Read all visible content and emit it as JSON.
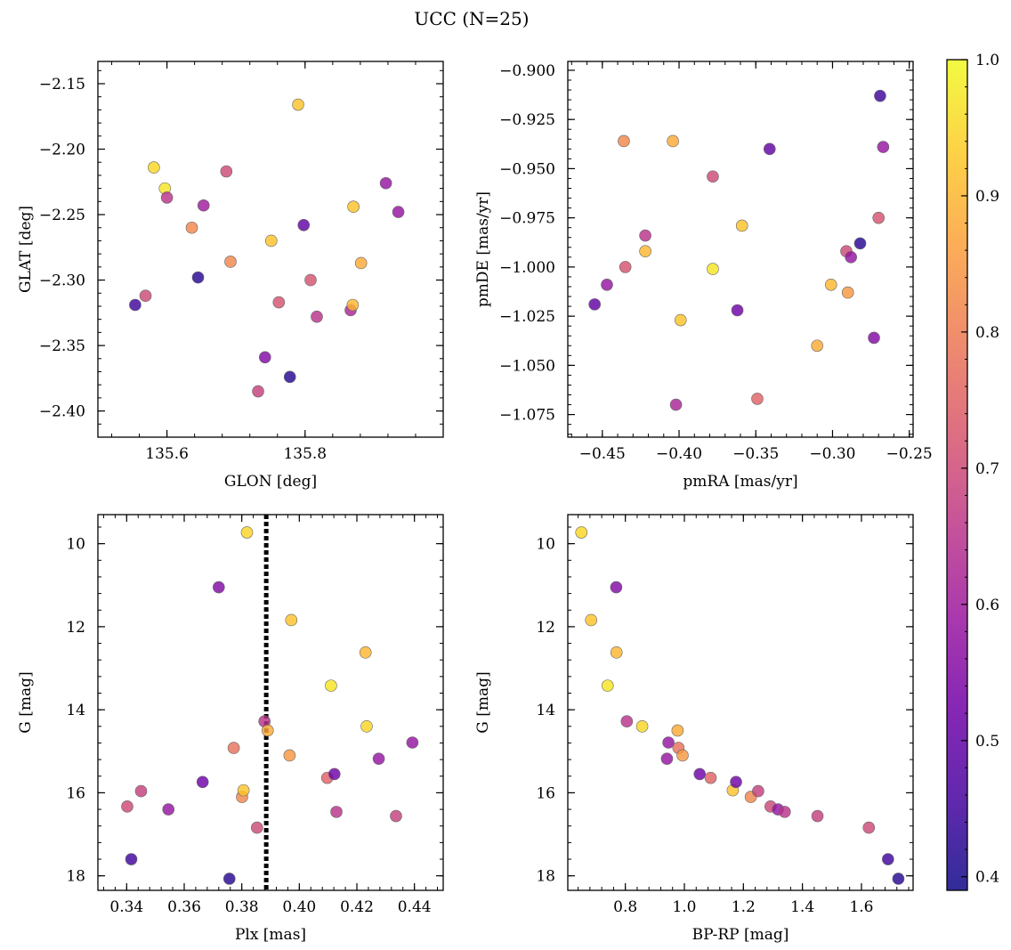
{
  "title": "UCC (N=25)",
  "colormap": [
    "#0d0887",
    "#46039f",
    "#7201a8",
    "#9c179e",
    "#bd3786",
    "#d8576b",
    "#ed7953",
    "#fb9f3a",
    "#fdca26",
    "#f0f921"
  ],
  "colorbar": {
    "range": [
      0.39,
      1.0
    ],
    "ticks": [
      0.4,
      0.5,
      0.6,
      0.7,
      0.8,
      0.9,
      1.0
    ],
    "tick_labels": [
      "0.4",
      "0.5",
      "0.6",
      "0.7",
      "0.8",
      "0.9",
      "1.0"
    ]
  },
  "chart_data": [
    {
      "type": "scatter",
      "xlabel": "GLON [deg]",
      "ylabel": "GLAT [deg]",
      "xlim": [
        135.5,
        136.0
      ],
      "ylim": [
        -2.42,
        -2.133
      ],
      "xticks": [
        135.6,
        135.8
      ],
      "xtick_labels": [
        "135.6",
        "135.8"
      ],
      "yticks": [
        -2.15,
        -2.2,
        -2.25,
        -2.3,
        -2.35,
        -2.4
      ],
      "ytick_labels": [
        "−2.15",
        "−2.20",
        "−2.25",
        "−2.30",
        "−2.35",
        "−2.40"
      ],
      "points": [
        {
          "x": 135.554,
          "y": -2.319,
          "c": 0.45
        },
        {
          "x": 135.569,
          "y": -2.312,
          "c": 0.7
        },
        {
          "x": 135.581,
          "y": -2.214,
          "c": 0.95
        },
        {
          "x": 135.597,
          "y": -2.23,
          "c": 0.97
        },
        {
          "x": 135.6,
          "y": -2.237,
          "c": 0.65
        },
        {
          "x": 135.636,
          "y": -2.26,
          "c": 0.82
        },
        {
          "x": 135.645,
          "y": -2.298,
          "c": 0.42
        },
        {
          "x": 135.653,
          "y": -2.243,
          "c": 0.6
        },
        {
          "x": 135.686,
          "y": -2.217,
          "c": 0.7
        },
        {
          "x": 135.692,
          "y": -2.286,
          "c": 0.82
        },
        {
          "x": 135.732,
          "y": -2.385,
          "c": 0.68
        },
        {
          "x": 135.742,
          "y": -2.359,
          "c": 0.55
        },
        {
          "x": 135.751,
          "y": -2.27,
          "c": 0.92
        },
        {
          "x": 135.762,
          "y": -2.317,
          "c": 0.72
        },
        {
          "x": 135.778,
          "y": -2.374,
          "c": 0.42
        },
        {
          "x": 135.79,
          "y": -2.166,
          "c": 0.92
        },
        {
          "x": 135.798,
          "y": -2.258,
          "c": 0.5
        },
        {
          "x": 135.808,
          "y": -2.3,
          "c": 0.72
        },
        {
          "x": 135.817,
          "y": -2.328,
          "c": 0.65
        },
        {
          "x": 135.866,
          "y": -2.323,
          "c": 0.62
        },
        {
          "x": 135.869,
          "y": -2.319,
          "c": 0.9
        },
        {
          "x": 135.87,
          "y": -2.244,
          "c": 0.92
        },
        {
          "x": 135.881,
          "y": -2.287,
          "c": 0.88
        },
        {
          "x": 135.917,
          "y": -2.226,
          "c": 0.58
        },
        {
          "x": 135.935,
          "y": -2.248,
          "c": 0.58
        }
      ]
    },
    {
      "type": "scatter",
      "xlabel": "pmRA [mas/yr]",
      "ylabel": "pmDE [mas/yr]",
      "xlim": [
        -0.4725,
        -0.2475
      ],
      "ylim": [
        -1.0865,
        -0.8955
      ],
      "xticks": [
        -0.45,
        -0.4,
        -0.35,
        -0.3,
        -0.25
      ],
      "xtick_labels": [
        "−0.45",
        "−0.40",
        "−0.35",
        "−0.30",
        "−0.25"
      ],
      "yticks": [
        -0.9,
        -0.925,
        -0.95,
        -0.975,
        -1.0,
        -1.025,
        -1.05,
        -1.075
      ],
      "ytick_labels": [
        "−0.900",
        "−0.925",
        "−0.950",
        "−0.975",
        "−1.000",
        "−1.025",
        "−1.050",
        "−1.075"
      ],
      "points": [
        {
          "x": -0.455,
          "y": -1.019,
          "c": 0.5
        },
        {
          "x": -0.447,
          "y": -1.009,
          "c": 0.58
        },
        {
          "x": -0.436,
          "y": -0.936,
          "c": 0.82
        },
        {
          "x": -0.435,
          "y": -1.0,
          "c": 0.72
        },
        {
          "x": -0.422,
          "y": -0.984,
          "c": 0.65
        },
        {
          "x": -0.422,
          "y": -0.992,
          "c": 0.9
        },
        {
          "x": -0.404,
          "y": -0.936,
          "c": 0.88
        },
        {
          "x": -0.402,
          "y": -1.07,
          "c": 0.62
        },
        {
          "x": -0.399,
          "y": -1.027,
          "c": 0.92
        },
        {
          "x": -0.378,
          "y": -0.954,
          "c": 0.7
        },
        {
          "x": -0.378,
          "y": -1.001,
          "c": 0.97
        },
        {
          "x": -0.362,
          "y": -1.022,
          "c": 0.52
        },
        {
          "x": -0.359,
          "y": -0.979,
          "c": 0.92
        },
        {
          "x": -0.349,
          "y": -1.067,
          "c": 0.75
        },
        {
          "x": -0.341,
          "y": -0.94,
          "c": 0.5
        },
        {
          "x": -0.31,
          "y": -1.04,
          "c": 0.88
        },
        {
          "x": -0.301,
          "y": -1.009,
          "c": 0.9
        },
        {
          "x": -0.291,
          "y": -0.992,
          "c": 0.7
        },
        {
          "x": -0.29,
          "y": -1.013,
          "c": 0.85
        },
        {
          "x": -0.288,
          "y": -0.995,
          "c": 0.58
        },
        {
          "x": -0.282,
          "y": -0.988,
          "c": 0.42
        },
        {
          "x": -0.273,
          "y": -1.036,
          "c": 0.55
        },
        {
          "x": -0.27,
          "y": -0.975,
          "c": 0.72
        },
        {
          "x": -0.269,
          "y": -0.913,
          "c": 0.45
        },
        {
          "x": -0.267,
          "y": -0.939,
          "c": 0.58
        }
      ]
    },
    {
      "type": "scatter",
      "xlabel": "Plx [mas]",
      "ylabel": "G [mag]",
      "xlim": [
        0.33,
        0.45
      ],
      "ylim": [
        18.35,
        9.3
      ],
      "xticks": [
        0.34,
        0.36,
        0.38,
        0.4,
        0.42,
        0.44
      ],
      "xtick_labels": [
        "0.34",
        "0.36",
        "0.38",
        "0.40",
        "0.42",
        "0.44"
      ],
      "yticks": [
        10,
        12,
        14,
        16,
        18
      ],
      "ytick_labels": [
        "10",
        "12",
        "14",
        "16",
        "18"
      ],
      "vline": 0.3885,
      "points": [
        {
          "x": 0.3402,
          "y": 16.33,
          "c": 0.7
        },
        {
          "x": 0.3416,
          "y": 17.6,
          "c": 0.45
        },
        {
          "x": 0.345,
          "y": 15.96,
          "c": 0.68
        },
        {
          "x": 0.3545,
          "y": 16.4,
          "c": 0.58
        },
        {
          "x": 0.3664,
          "y": 15.74,
          "c": 0.52
        },
        {
          "x": 0.372,
          "y": 11.05,
          "c": 0.55
        },
        {
          "x": 0.3757,
          "y": 18.07,
          "c": 0.42
        },
        {
          "x": 0.3772,
          "y": 14.92,
          "c": 0.78
        },
        {
          "x": 0.3801,
          "y": 16.1,
          "c": 0.82
        },
        {
          "x": 0.3806,
          "y": 15.94,
          "c": 0.92
        },
        {
          "x": 0.3818,
          "y": 9.73,
          "c": 0.95
        },
        {
          "x": 0.3853,
          "y": 16.84,
          "c": 0.7
        },
        {
          "x": 0.3879,
          "y": 14.28,
          "c": 0.65
        },
        {
          "x": 0.389,
          "y": 14.5,
          "c": 0.88
        },
        {
          "x": 0.3966,
          "y": 15.1,
          "c": 0.85
        },
        {
          "x": 0.3972,
          "y": 11.84,
          "c": 0.92
        },
        {
          "x": 0.4097,
          "y": 15.64,
          "c": 0.75
        },
        {
          "x": 0.411,
          "y": 13.42,
          "c": 0.97
        },
        {
          "x": 0.4122,
          "y": 15.55,
          "c": 0.52
        },
        {
          "x": 0.4129,
          "y": 16.46,
          "c": 0.65
        },
        {
          "x": 0.423,
          "y": 12.62,
          "c": 0.9
        },
        {
          "x": 0.4234,
          "y": 14.4,
          "c": 0.95
        },
        {
          "x": 0.4276,
          "y": 15.18,
          "c": 0.58
        },
        {
          "x": 0.4336,
          "y": 16.56,
          "c": 0.68
        },
        {
          "x": 0.4393,
          "y": 14.79,
          "c": 0.58
        }
      ]
    },
    {
      "type": "scatter",
      "xlabel": "BP-RP [mag]",
      "ylabel": "G [mag]",
      "xlim": [
        0.605,
        1.775
      ],
      "ylim": [
        18.35,
        9.3
      ],
      "xticks": [
        0.8,
        1.0,
        1.2,
        1.4,
        1.6
      ],
      "xtick_labels": [
        "0.8",
        "1.0",
        "1.2",
        "1.4",
        "1.6"
      ],
      "yticks": [
        10,
        12,
        14,
        16,
        18
      ],
      "ytick_labels": [
        "10",
        "12",
        "14",
        "16",
        "18"
      ],
      "points": [
        {
          "x": 0.651,
          "y": 9.73,
          "c": 0.95
        },
        {
          "x": 0.684,
          "y": 11.84,
          "c": 0.92
        },
        {
          "x": 0.74,
          "y": 13.42,
          "c": 0.97
        },
        {
          "x": 0.769,
          "y": 11.05,
          "c": 0.55
        },
        {
          "x": 0.77,
          "y": 12.62,
          "c": 0.9
        },
        {
          "x": 0.805,
          "y": 14.28,
          "c": 0.65
        },
        {
          "x": 0.857,
          "y": 14.4,
          "c": 0.95
        },
        {
          "x": 0.941,
          "y": 15.18,
          "c": 0.58
        },
        {
          "x": 0.946,
          "y": 14.79,
          "c": 0.58
        },
        {
          "x": 0.977,
          "y": 14.5,
          "c": 0.88
        },
        {
          "x": 0.98,
          "y": 14.92,
          "c": 0.78
        },
        {
          "x": 0.994,
          "y": 15.1,
          "c": 0.85
        },
        {
          "x": 1.052,
          "y": 15.55,
          "c": 0.52
        },
        {
          "x": 1.089,
          "y": 15.64,
          "c": 0.75
        },
        {
          "x": 1.164,
          "y": 15.94,
          "c": 0.92
        },
        {
          "x": 1.175,
          "y": 15.74,
          "c": 0.52
        },
        {
          "x": 1.225,
          "y": 16.1,
          "c": 0.82
        },
        {
          "x": 1.25,
          "y": 15.96,
          "c": 0.68
        },
        {
          "x": 1.292,
          "y": 16.33,
          "c": 0.7
        },
        {
          "x": 1.317,
          "y": 16.4,
          "c": 0.58
        },
        {
          "x": 1.34,
          "y": 16.46,
          "c": 0.65
        },
        {
          "x": 1.451,
          "y": 16.56,
          "c": 0.68
        },
        {
          "x": 1.625,
          "y": 16.84,
          "c": 0.7
        },
        {
          "x": 1.69,
          "y": 17.6,
          "c": 0.45
        },
        {
          "x": 1.725,
          "y": 18.07,
          "c": 0.42
        }
      ]
    }
  ]
}
